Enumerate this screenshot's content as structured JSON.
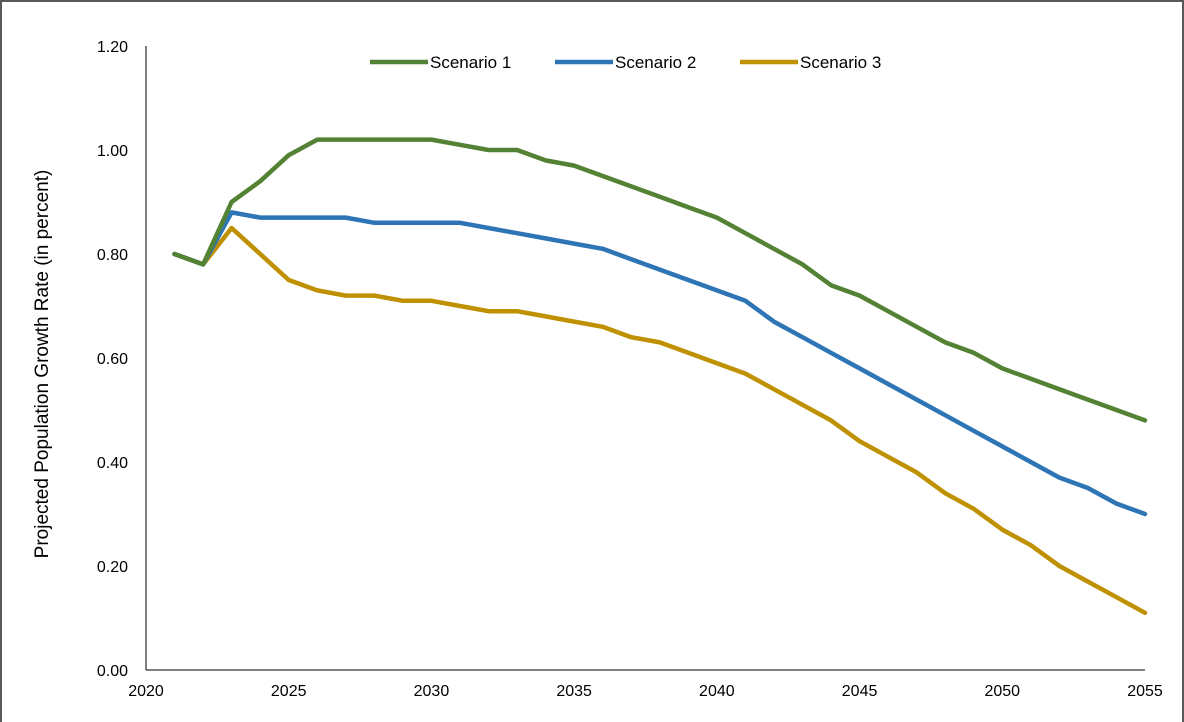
{
  "chart_data": {
    "type": "line",
    "title": "",
    "xlabel": "",
    "ylabel": "Projected Population Growth Rate (in percent)",
    "xlim": [
      2020,
      2055
    ],
    "ylim": [
      0,
      1.2
    ],
    "x_ticks": [
      "2020",
      "2025",
      "2030",
      "2035",
      "2040",
      "2045",
      "2050",
      "2055"
    ],
    "y_ticks": [
      "0.00",
      "0.20",
      "0.40",
      "0.60",
      "0.80",
      "1.00",
      "1.20"
    ],
    "grid": false,
    "legend_position": "top-center",
    "x": [
      2021,
      2022,
      2023,
      2024,
      2025,
      2026,
      2027,
      2028,
      2029,
      2030,
      2031,
      2032,
      2033,
      2034,
      2035,
      2036,
      2037,
      2038,
      2039,
      2040,
      2041,
      2042,
      2043,
      2044,
      2045,
      2046,
      2047,
      2048,
      2049,
      2050,
      2051,
      2052,
      2053,
      2054,
      2055
    ],
    "series": [
      {
        "name": "Scenario 1",
        "color": "#548235",
        "values": [
          0.8,
          0.78,
          0.9,
          0.94,
          0.99,
          1.02,
          1.02,
          1.02,
          1.02,
          1.02,
          1.01,
          1.0,
          1.0,
          0.98,
          0.97,
          0.95,
          0.93,
          0.91,
          0.89,
          0.87,
          0.84,
          0.81,
          0.78,
          0.74,
          0.72,
          0.69,
          0.66,
          0.63,
          0.61,
          0.58,
          0.56,
          0.54,
          0.52,
          0.5,
          0.48
        ]
      },
      {
        "name": "Scenario 2",
        "color": "#2E75B6",
        "values": [
          0.8,
          0.78,
          0.88,
          0.87,
          0.87,
          0.87,
          0.87,
          0.86,
          0.86,
          0.86,
          0.86,
          0.85,
          0.84,
          0.83,
          0.82,
          0.81,
          0.79,
          0.77,
          0.75,
          0.73,
          0.71,
          0.67,
          0.64,
          0.61,
          0.58,
          0.55,
          0.52,
          0.49,
          0.46,
          0.43,
          0.4,
          0.37,
          0.35,
          0.32,
          0.3
        ]
      },
      {
        "name": "Scenario 3",
        "color": "#BF9000",
        "values": [
          0.8,
          0.78,
          0.85,
          0.8,
          0.75,
          0.73,
          0.72,
          0.72,
          0.71,
          0.71,
          0.7,
          0.69,
          0.69,
          0.68,
          0.67,
          0.66,
          0.64,
          0.63,
          0.61,
          0.59,
          0.57,
          0.54,
          0.51,
          0.48,
          0.44,
          0.41,
          0.38,
          0.34,
          0.31,
          0.27,
          0.24,
          0.2,
          0.17,
          0.14,
          0.11
        ]
      }
    ]
  }
}
